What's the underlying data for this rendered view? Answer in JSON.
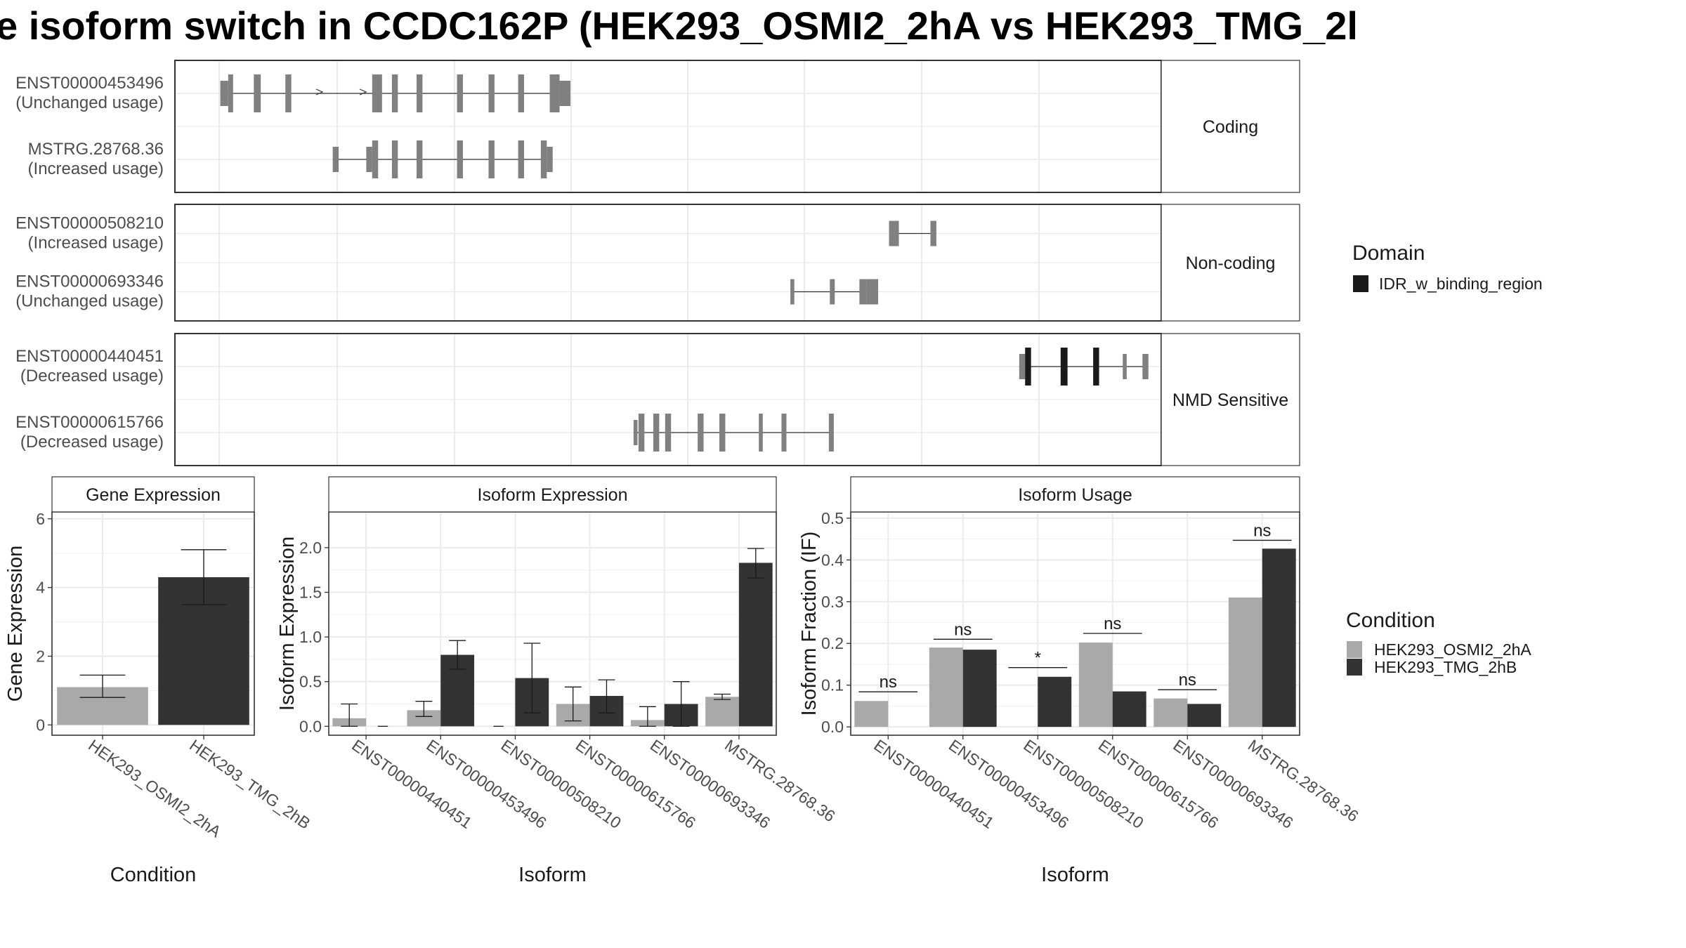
{
  "title": "e isoform switch in CCDC162P (HEK293_OSMI2_2hA vs HEK293_TMG_2l",
  "colors": {
    "light_bar": "#a9a9a9",
    "dark_bar": "#333333",
    "transcript": "#808080",
    "domain": "#1a1a1a",
    "grid": "#ebebeb",
    "panel_border": "#333333",
    "strip_bg": "#ffffff"
  },
  "legends": {
    "domain": {
      "title": "Domain",
      "items": [
        {
          "label": "IDR_w_binding_region",
          "color": "#1a1a1a"
        }
      ]
    },
    "condition": {
      "title": "Condition",
      "items": [
        {
          "label": "HEK293_OSMI2_2hA",
          "color": "#a9a9a9"
        },
        {
          "label": "HEK293_TMG_2hB",
          "color": "#333333"
        }
      ]
    }
  },
  "chart_data": [
    {
      "type": "gene-structure",
      "genomic_range": [
        0,
        100
      ],
      "panels": [
        {
          "label": "Coding",
          "transcripts": [
            {
              "id": "ENST00000453496",
              "usage": "(Unchanged usage)",
              "domain_exons": [],
              "exons": [
                [
                  4.6,
                  5.4,
                  "utr"
                ],
                [
                  5.4,
                  5.9,
                  "cds"
                ],
                [
                  8.0,
                  8.7,
                  "cds"
                ],
                [
                  11.2,
                  11.8,
                  "cds"
                ],
                [
                  20.0,
                  21.0,
                  "cds"
                ],
                [
                  22.0,
                  22.6,
                  "cds"
                ],
                [
                  24.5,
                  25.1,
                  "cds"
                ],
                [
                  28.6,
                  29.2,
                  "cds"
                ],
                [
                  31.8,
                  32.4,
                  "cds"
                ],
                [
                  34.8,
                  35.4,
                  "cds"
                ],
                [
                  38.0,
                  39.0,
                  "cds"
                ],
                [
                  39.0,
                  40.1,
                  "utr"
                ]
              ]
            },
            {
              "id": "MSTRG.28768.36",
              "usage": "(Increased usage)",
              "domain_exons": [],
              "exons": [
                [
                  16.0,
                  16.6,
                  "utr"
                ],
                [
                  19.4,
                  20.0,
                  "utr"
                ],
                [
                  20.0,
                  20.6,
                  "cds"
                ],
                [
                  22.0,
                  22.6,
                  "cds"
                ],
                [
                  24.5,
                  25.1,
                  "cds"
                ],
                [
                  28.6,
                  29.2,
                  "cds"
                ],
                [
                  31.8,
                  32.4,
                  "cds"
                ],
                [
                  34.8,
                  35.4,
                  "cds"
                ],
                [
                  37.1,
                  37.7,
                  "cds"
                ],
                [
                  37.7,
                  38.3,
                  "utr"
                ]
              ]
            }
          ]
        },
        {
          "label": "Non-coding",
          "transcripts": [
            {
              "id": "ENST00000508210",
              "usage": "(Increased usage)",
              "domain_exons": [],
              "exons": [
                [
                  72.4,
                  73.4,
                  "utr"
                ],
                [
                  76.6,
                  77.2,
                  "utr"
                ]
              ]
            },
            {
              "id": "ENST00000693346",
              "usage": "(Unchanged usage)",
              "domain_exons": [],
              "exons": [
                [
                  62.4,
                  62.8,
                  "utr"
                ],
                [
                  66.4,
                  66.9,
                  "utr"
                ],
                [
                  69.4,
                  70.1,
                  "utr"
                ],
                [
                  70.1,
                  71.3,
                  "utr"
                ]
              ]
            }
          ]
        },
        {
          "label": "NMD Sensitive",
          "transcripts": [
            {
              "id": "ENST00000440451",
              "usage": "(Decreased usage)",
              "domain_exons": [
                1,
                2,
                3
              ],
              "exons": [
                [
                  85.6,
                  86.2,
                  "utr"
                ],
                [
                  86.2,
                  86.8,
                  "cds"
                ],
                [
                  89.8,
                  90.5,
                  "cds"
                ],
                [
                  93.1,
                  93.7,
                  "cds"
                ],
                [
                  96.1,
                  96.5,
                  "utr"
                ],
                [
                  98.1,
                  98.7,
                  "utr"
                ]
              ]
            },
            {
              "id": "ENST00000615766",
              "usage": "(Decreased usage)",
              "domain_exons": [],
              "exons": [
                [
                  46.5,
                  46.9,
                  "utr"
                ],
                [
                  47.0,
                  47.6,
                  "cds"
                ],
                [
                  48.5,
                  49.1,
                  "cds"
                ],
                [
                  49.7,
                  50.3,
                  "cds"
                ],
                [
                  53.0,
                  53.6,
                  "cds"
                ],
                [
                  55.2,
                  55.8,
                  "cds"
                ],
                [
                  59.2,
                  59.6,
                  "cds"
                ],
                [
                  61.5,
                  62.0,
                  "cds"
                ],
                [
                  66.3,
                  66.8,
                  "cds"
                ]
              ]
            }
          ]
        }
      ]
    },
    {
      "type": "bar",
      "title": "Gene Expression",
      "xlabel": "Condition",
      "ylabel": "Gene Expression",
      "ylim": [
        -0.3,
        6.2
      ],
      "yticks": [
        0,
        2,
        4,
        6
      ],
      "categories": [
        "HEK293_OSMI2_2hA",
        "HEK293_TMG_2hB"
      ],
      "series": [
        {
          "values": [
            1.1,
            4.3
          ],
          "errors": [
            [
              0.8,
              1.45
            ],
            [
              3.5,
              5.1
            ]
          ]
        }
      ]
    },
    {
      "type": "bar",
      "title": "Isoform Expression",
      "xlabel": "Isoform",
      "ylabel": "Isoform Expression",
      "ylim": [
        -0.1,
        2.4
      ],
      "yticks": [
        0.0,
        0.5,
        1.0,
        1.5,
        2.0
      ],
      "categories": [
        "ENST00000440451",
        "ENST00000453496",
        "ENST00000508210",
        "ENST00000615766",
        "ENST00000693346",
        "MSTRG.28768.36"
      ],
      "series": [
        {
          "name": "HEK293_OSMI2_2hA",
          "values": [
            0.09,
            0.18,
            0.0,
            0.25,
            0.07,
            0.33
          ],
          "errors": [
            [
              0.0,
              0.25
            ],
            [
              0.11,
              0.28
            ],
            [
              0.0,
              0.0
            ],
            [
              0.06,
              0.44
            ],
            [
              0.0,
              0.22
            ],
            [
              0.3,
              0.36
            ]
          ]
        },
        {
          "name": "HEK293_TMG_2hB",
          "values": [
            0.0,
            0.8,
            0.54,
            0.34,
            0.25,
            1.83
          ],
          "errors": [
            [
              0.0,
              0.0
            ],
            [
              0.64,
              0.96
            ],
            [
              0.15,
              0.93
            ],
            [
              0.15,
              0.52
            ],
            [
              0.0,
              0.5
            ],
            [
              1.66,
              1.99
            ]
          ]
        }
      ]
    },
    {
      "type": "bar",
      "title": "Isoform Usage",
      "xlabel": "Isoform",
      "ylabel": "Isoform Fraction (IF)",
      "ylim": [
        -0.02,
        0.515
      ],
      "yticks": [
        0.0,
        0.1,
        0.2,
        0.3,
        0.4,
        0.5
      ],
      "categories": [
        "ENST00000440451",
        "ENST00000453496",
        "ENST00000508210",
        "ENST00000615766",
        "ENST00000693346",
        "MSTRG.28768.36"
      ],
      "series": [
        {
          "name": "HEK293_OSMI2_2hA",
          "values": [
            0.062,
            0.19,
            0.0,
            0.202,
            0.068,
            0.31
          ]
        },
        {
          "name": "HEK293_TMG_2hB",
          "values": [
            0.0,
            0.185,
            0.12,
            0.085,
            0.055,
            0.427
          ]
        }
      ],
      "significance": [
        {
          "label": "ns",
          "y": 0.084
        },
        {
          "label": "ns",
          "y": 0.21
        },
        {
          "label": "*",
          "y": 0.142
        },
        {
          "label": "ns",
          "y": 0.224
        },
        {
          "label": "ns",
          "y": 0.089
        },
        {
          "label": "ns",
          "y": 0.447
        }
      ]
    }
  ]
}
